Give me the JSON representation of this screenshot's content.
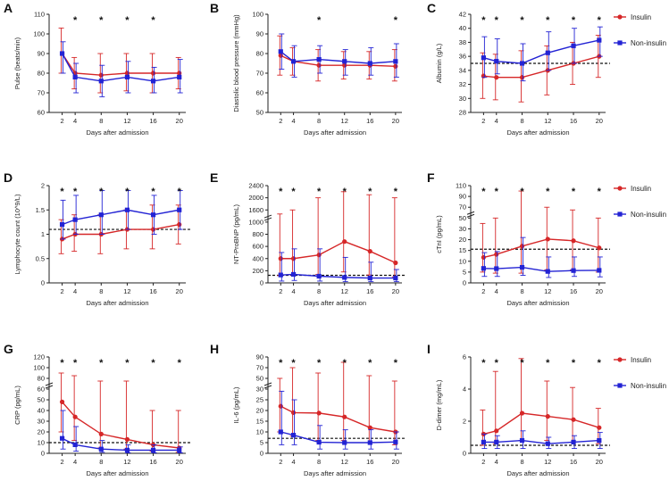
{
  "colors": {
    "insulin": "#d62728",
    "non_insulin": "#2323d4",
    "axis": "#222222"
  },
  "legend": {
    "insulin": "Insulin",
    "non_insulin": "Non-insulin"
  },
  "chart_data": [
    {
      "type": "line",
      "panel": "A",
      "title": "",
      "xlabel": "Days after admission",
      "ylabel": "Pulse (beats/min)",
      "categories": [
        2,
        4,
        8,
        12,
        16,
        20
      ],
      "y_axis": {
        "min": 60,
        "max": 110,
        "ticks": [
          60,
          70,
          80,
          90,
          100,
          110
        ]
      },
      "series": [
        {
          "name": "Insulin",
          "values": [
            90,
            80,
            79,
            80,
            80,
            80
          ],
          "err_low": [
            80,
            72,
            70,
            71,
            70,
            72
          ],
          "err_high": [
            103,
            88,
            90,
            90,
            90,
            88
          ]
        },
        {
          "name": "Non-insulin",
          "values": [
            90,
            78,
            76,
            78,
            76,
            78
          ],
          "err_low": [
            80,
            70,
            68,
            70,
            70,
            70
          ],
          "err_high": [
            96,
            85,
            84,
            86,
            83,
            87
          ]
        }
      ],
      "significant": [
        false,
        true,
        true,
        true,
        true,
        false
      ],
      "reference_line": null
    },
    {
      "type": "line",
      "panel": "B",
      "title": "",
      "xlabel": "Days after admission",
      "ylabel": "Diastolic blood pressure (mmHg)",
      "categories": [
        2,
        4,
        8,
        12,
        16,
        20
      ],
      "y_axis": {
        "min": 50,
        "max": 100,
        "ticks": [
          50,
          60,
          70,
          80,
          90,
          100
        ]
      },
      "series": [
        {
          "name": "Insulin",
          "values": [
            79,
            76,
            74,
            74,
            74,
            73.5
          ],
          "err_low": [
            69,
            69,
            66,
            67,
            67,
            66
          ],
          "err_high": [
            89,
            83,
            82,
            81,
            81,
            82
          ]
        },
        {
          "name": "Non-insulin",
          "values": [
            81,
            76,
            77,
            76,
            75,
            76
          ],
          "err_low": [
            72,
            68,
            70,
            69,
            69,
            68
          ],
          "err_high": [
            90,
            84,
            84,
            82,
            83,
            85
          ]
        }
      ],
      "significant": [
        false,
        false,
        true,
        false,
        false,
        true
      ],
      "reference_line": null
    },
    {
      "type": "line",
      "panel": "C",
      "title": "",
      "xlabel": "Days after admission",
      "ylabel": "Albumin (g/L)",
      "categories": [
        2,
        4,
        8,
        12,
        16,
        20
      ],
      "y_axis": {
        "min": 28,
        "max": 42,
        "ticks": [
          28,
          30,
          32,
          34,
          36,
          38,
          40,
          42
        ]
      },
      "series": [
        {
          "name": "Insulin",
          "values": [
            33.2,
            33,
            33,
            34,
            35,
            36
          ],
          "err_low": [
            30,
            29.8,
            29.5,
            30.5,
            32,
            33
          ],
          "err_high": [
            36.5,
            36.3,
            36.8,
            37.5,
            38,
            39
          ]
        },
        {
          "name": "Non-insulin",
          "values": [
            35.8,
            35.3,
            35,
            36.5,
            37.5,
            38.3
          ],
          "err_low": [
            33,
            33.5,
            32.5,
            34,
            35,
            36
          ],
          "err_high": [
            38.8,
            38.5,
            37.8,
            39.5,
            40,
            40.2
          ]
        }
      ],
      "significant": [
        true,
        true,
        true,
        true,
        true,
        true
      ],
      "reference_line": 35
    },
    {
      "type": "line",
      "panel": "D",
      "title": "",
      "xlabel": "Days after admission",
      "ylabel": "Lymphocyte count (10^9/L)",
      "categories": [
        2,
        4,
        8,
        12,
        16,
        20
      ],
      "y_axis": {
        "min": 0,
        "max": 2.0,
        "ticks": [
          0,
          0.5,
          1.0,
          1.5,
          2.0
        ],
        "tick_labels": [
          "0",
          "0.5",
          "1",
          "1.5",
          "2"
        ]
      },
      "series": [
        {
          "name": "Insulin",
          "values": [
            0.9,
            1.0,
            1.0,
            1.1,
            1.1,
            1.2
          ],
          "err_low": [
            0.6,
            0.65,
            0.6,
            0.7,
            0.7,
            0.8
          ],
          "err_high": [
            1.3,
            1.4,
            1.4,
            1.5,
            1.6,
            1.6
          ]
        },
        {
          "name": "Non-insulin",
          "values": [
            1.2,
            1.3,
            1.4,
            1.5,
            1.4,
            1.5
          ],
          "err_low": [
            0.9,
            1.0,
            1.0,
            1.1,
            1.0,
            1.1
          ],
          "err_high": [
            1.7,
            1.8,
            1.9,
            1.9,
            1.8,
            1.9
          ]
        }
      ],
      "significant": [
        true,
        true,
        true,
        true,
        true,
        true
      ],
      "reference_line": 1.1
    },
    {
      "type": "line",
      "panel": "E",
      "title": "",
      "xlabel": "Days after admission",
      "ylabel": "NT-ProBNP (pg/mL)",
      "categories": [
        2,
        4,
        8,
        12,
        16,
        20
      ],
      "y_axis": {
        "min": 0,
        "max": 2400,
        "scale": "broken",
        "ticks": [
          0,
          200,
          400,
          600,
          800,
          1000,
          1600,
          2000,
          2400
        ]
      },
      "series": [
        {
          "name": "Insulin",
          "values": [
            400,
            400,
            460,
            680,
            520,
            330
          ],
          "err_low": [
            120,
            130,
            140,
            180,
            130,
            100
          ],
          "err_high": [
            1400,
            1600,
            2000,
            2200,
            2100,
            2000
          ]
        },
        {
          "name": "Non-insulin",
          "values": [
            130,
            140,
            110,
            90,
            80,
            80
          ],
          "err_low": [
            30,
            40,
            30,
            20,
            20,
            20
          ],
          "err_high": [
            500,
            560,
            560,
            420,
            340,
            220
          ]
        }
      ],
      "significant": [
        true,
        true,
        true,
        true,
        true,
        true
      ],
      "reference_line": 125
    },
    {
      "type": "line",
      "panel": "F",
      "title": "",
      "xlabel": "Days after admission",
      "ylabel": "cTnI (pg/mL)",
      "categories": [
        2,
        4,
        8,
        12,
        16,
        20
      ],
      "y_axis": {
        "min": 0,
        "max": 110,
        "scale": "broken",
        "ticks": [
          0,
          5,
          10,
          15,
          20,
          30,
          50,
          70,
          90,
          110
        ]
      },
      "series": [
        {
          "name": "Insulin",
          "values": [
            11.8,
            13.2,
            17,
            20.5,
            19.5,
            16.2
          ],
          "err_low": [
            5,
            4.5,
            4.5,
            6,
            6,
            5
          ],
          "err_high": [
            40,
            50,
            100,
            70,
            65,
            50
          ]
        },
        {
          "name": "Non-insulin",
          "values": [
            6.7,
            6.6,
            7.2,
            5.3,
            5.7,
            5.8
          ],
          "err_low": [
            3,
            3,
            3.5,
            2.5,
            3,
            2.8
          ],
          "err_high": [
            14,
            14.5,
            22,
            12,
            12,
            12
          ]
        }
      ],
      "significant": [
        true,
        true,
        true,
        true,
        true,
        true
      ],
      "reference_line": 15.6
    },
    {
      "type": "line",
      "panel": "G",
      "title": "",
      "xlabel": "Days after admission",
      "ylabel": "CRP (pg/mL)",
      "categories": [
        2,
        4,
        8,
        12,
        16,
        20
      ],
      "y_axis": {
        "min": 0,
        "max": 120,
        "scale": "broken",
        "ticks": [
          0,
          10,
          20,
          30,
          40,
          50,
          60,
          80,
          100,
          120
        ]
      },
      "series": [
        {
          "name": "Insulin",
          "values": [
            48,
            34,
            18,
            13,
            8,
            5
          ],
          "err_low": [
            20,
            12,
            5,
            4,
            2,
            1
          ],
          "err_high": [
            90,
            85,
            75,
            75,
            40,
            40
          ]
        },
        {
          "name": "Non-insulin",
          "values": [
            14,
            8,
            4,
            3,
            3,
            3
          ],
          "err_low": [
            4,
            2,
            1,
            0.5,
            0.5,
            0.5
          ],
          "err_high": [
            40,
            25,
            12,
            8,
            8,
            6
          ]
        }
      ],
      "significant": [
        true,
        true,
        true,
        true,
        true,
        true
      ],
      "reference_line": 10
    },
    {
      "type": "line",
      "panel": "H",
      "title": "",
      "xlabel": "Days after admission",
      "ylabel": "IL-6 (pg/mL)",
      "categories": [
        2,
        4,
        8,
        12,
        16,
        20
      ],
      "y_axis": {
        "min": 0,
        "max": 90,
        "scale": "broken",
        "ticks": [
          0,
          5,
          10,
          15,
          20,
          25,
          30,
          50,
          70,
          90
        ]
      },
      "series": [
        {
          "name": "Insulin",
          "values": [
            22,
            19,
            18.8,
            17,
            12,
            10
          ],
          "err_low": [
            10,
            8,
            6,
            6,
            5,
            4
          ],
          "err_high": [
            50,
            70,
            60,
            80,
            55,
            45
          ]
        },
        {
          "name": "Non-insulin",
          "values": [
            10,
            8.5,
            5.2,
            5,
            5,
            5.3
          ],
          "err_low": [
            4,
            4,
            2,
            2,
            2,
            2
          ],
          "err_high": [
            29,
            25,
            13,
            11,
            11,
            10
          ]
        }
      ],
      "significant": [
        true,
        true,
        true,
        true,
        true,
        true
      ],
      "reference_line": 7
    },
    {
      "type": "line",
      "panel": "I",
      "title": "",
      "xlabel": "Days after admission",
      "ylabel": "D-dimer (mg/mL)",
      "categories": [
        2,
        4,
        8,
        12,
        16,
        20
      ],
      "y_axis": {
        "min": 0,
        "max": 6,
        "ticks": [
          0,
          2,
          4,
          6
        ]
      },
      "series": [
        {
          "name": "Insulin",
          "values": [
            1.2,
            1.4,
            2.5,
            2.3,
            2.1,
            1.6
          ],
          "err_low": [
            0.5,
            0.6,
            0.8,
            0.8,
            0.7,
            0.6
          ],
          "err_high": [
            2.7,
            5.1,
            5.9,
            4.5,
            4.1,
            2.8
          ]
        },
        {
          "name": "Non-insulin",
          "values": [
            0.7,
            0.7,
            0.8,
            0.6,
            0.7,
            0.8
          ],
          "err_low": [
            0.3,
            0.3,
            0.3,
            0.3,
            0.3,
            0.3
          ],
          "err_high": [
            1.2,
            1.1,
            1.4,
            1.0,
            1.1,
            1.3
          ]
        }
      ],
      "significant": [
        true,
        true,
        true,
        true,
        true,
        true
      ],
      "reference_line": 0.5
    }
  ]
}
